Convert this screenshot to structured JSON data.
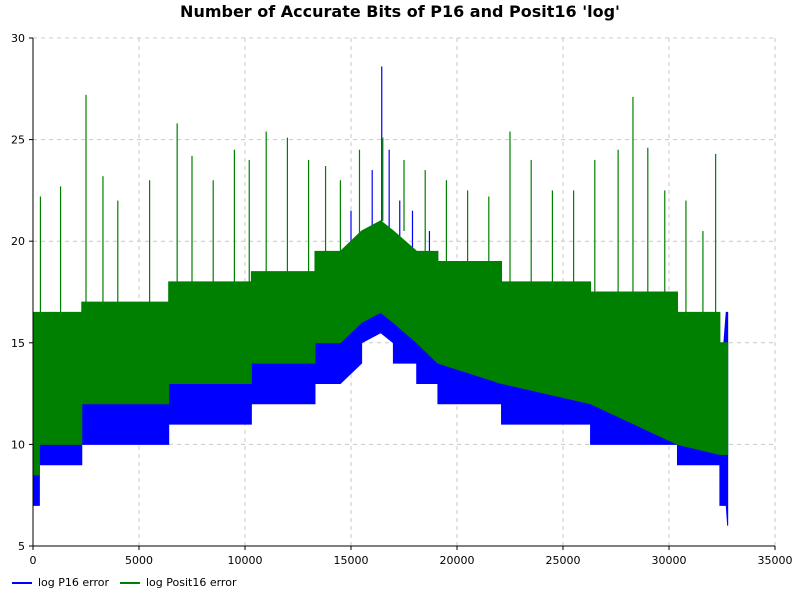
{
  "chart_data": {
    "type": "line",
    "title": "Number of Accurate Bits of  P16 and Posit16 'log'",
    "xlabel": "",
    "ylabel": "",
    "xlim": [
      0,
      35000
    ],
    "ylim": [
      5,
      30
    ],
    "xticks": [
      0,
      5000,
      10000,
      15000,
      20000,
      25000,
      30000,
      35000
    ],
    "yticks": [
      5,
      10,
      15,
      20,
      25,
      30
    ],
    "xtick_labels": [
      "0",
      "5000",
      "10000",
      "15000",
      "20000",
      "25000",
      "30000",
      "35000"
    ],
    "ytick_labels": [
      "5",
      "10",
      "15",
      "20",
      "25",
      "30"
    ],
    "grid": true,
    "legend_position": "bottom-left",
    "series": [
      {
        "name": "log P16 error",
        "color": "#0000ff",
        "style": "dense band (lower envelope / upper envelope / spikes)",
        "x": [
          0,
          300,
          301,
          2300,
          2301,
          6400,
          6401,
          10300,
          10301,
          13300,
          13301,
          14500,
          15500,
          15501,
          16400,
          17000,
          17001,
          18100,
          18101,
          19100,
          19101,
          22100,
          22101,
          26300,
          26301,
          30400,
          30401,
          32400,
          32401,
          32700,
          32768
        ],
        "lower": [
          7,
          7,
          9,
          9,
          10,
          10,
          11,
          11,
          12,
          12,
          13,
          13,
          14,
          15,
          15.5,
          15,
          14,
          14,
          13,
          13,
          12,
          12,
          11,
          11,
          10,
          10,
          9,
          9,
          7,
          7,
          6
        ],
        "upper": [
          12.5,
          12.5,
          12.5,
          12.5,
          13,
          13,
          13.5,
          13.5,
          14.5,
          14.5,
          15.5,
          15.5,
          16.5,
          17,
          18,
          17,
          16.5,
          16.5,
          15.5,
          15.5,
          14.5,
          14.5,
          13.5,
          13.5,
          13.5,
          13.5,
          12.5,
          12.5,
          12.5,
          16.5,
          16.5
        ],
        "spikes": [
          [
            3000,
            13.5
          ],
          [
            8000,
            14.5
          ],
          [
            11500,
            16.5
          ],
          [
            13600,
            19.5
          ],
          [
            15000,
            21.5
          ],
          [
            16000,
            23.5
          ],
          [
            16450,
            28.6
          ],
          [
            16800,
            24.5
          ],
          [
            17300,
            22
          ],
          [
            17900,
            21.5
          ],
          [
            18700,
            20.5
          ],
          [
            20200,
            18.5
          ],
          [
            24500,
            15.5
          ],
          [
            27500,
            14.5
          ],
          [
            31500,
            15
          ],
          [
            32700,
            16.5
          ]
        ]
      },
      {
        "name": "log Posit16 error",
        "color": "#008000",
        "style": "dense band (lower envelope / upper envelope / spikes)",
        "x": [
          0,
          300,
          301,
          2300,
          2301,
          6400,
          6401,
          10300,
          10301,
          13300,
          13301,
          14500,
          15500,
          16400,
          17000,
          18100,
          18101,
          19100,
          19101,
          22100,
          22101,
          26300,
          26301,
          30400,
          30401,
          32400,
          32401,
          32768
        ],
        "lower": [
          8.5,
          8.5,
          10,
          10,
          12,
          12,
          13,
          13,
          14,
          14,
          15,
          15,
          16,
          16.5,
          16,
          15,
          15,
          14,
          14,
          13,
          13,
          12,
          12,
          10,
          10,
          9.5,
          9.5,
          9.5
        ],
        "upper": [
          16.5,
          16.5,
          16.5,
          16.5,
          17,
          17,
          18,
          18,
          18.5,
          18.5,
          19.5,
          19.5,
          20.5,
          21,
          20.5,
          19.5,
          19.5,
          19.5,
          19,
          19,
          18,
          18,
          17.5,
          17.5,
          16.5,
          16.5,
          15,
          15
        ],
        "spikes": [
          [
            350,
            22.2
          ],
          [
            1300,
            22.7
          ],
          [
            2500,
            27.2
          ],
          [
            3300,
            23.2
          ],
          [
            4000,
            22
          ],
          [
            5500,
            23
          ],
          [
            6800,
            25.8
          ],
          [
            7500,
            24.2
          ],
          [
            8500,
            23
          ],
          [
            9500,
            24.5
          ],
          [
            10200,
            24
          ],
          [
            11000,
            25.4
          ],
          [
            12000,
            25.1
          ],
          [
            13000,
            24
          ],
          [
            13800,
            23.7
          ],
          [
            14500,
            23
          ],
          [
            15400,
            24.5
          ],
          [
            16500,
            25.1
          ],
          [
            17500,
            24
          ],
          [
            18500,
            23.5
          ],
          [
            19500,
            23
          ],
          [
            20500,
            22.5
          ],
          [
            21500,
            22.2
          ],
          [
            22500,
            25.4
          ],
          [
            23500,
            24
          ],
          [
            24500,
            22.5
          ],
          [
            25500,
            22.5
          ],
          [
            26500,
            24
          ],
          [
            27600,
            24.5
          ],
          [
            28300,
            27.1
          ],
          [
            29000,
            24.6
          ],
          [
            29800,
            22.5
          ],
          [
            30800,
            22
          ],
          [
            31600,
            20.5
          ],
          [
            32200,
            24.3
          ]
        ]
      }
    ]
  }
}
